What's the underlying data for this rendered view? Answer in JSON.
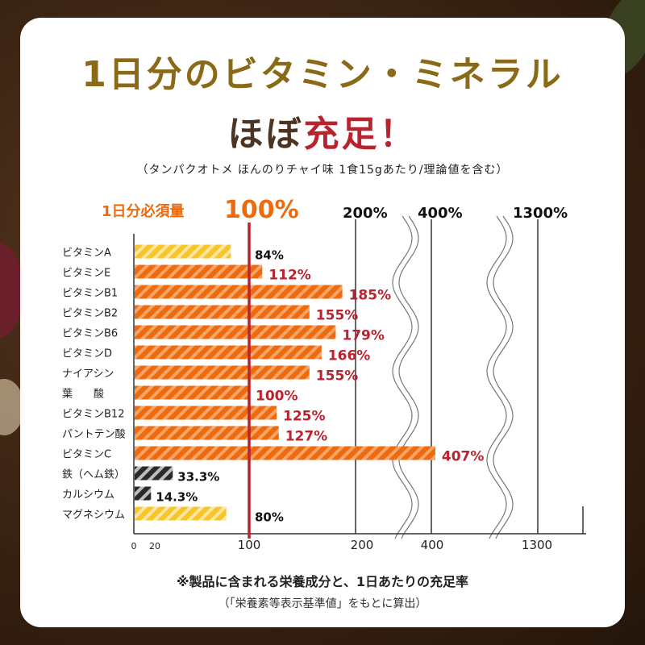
{
  "header": {
    "title_line1": "1日分のビタミン・ミネラル",
    "title_line2_prefix": "ほぼ",
    "title_line2_accent": "充足",
    "title_line2_suffix": "！",
    "subtitle": "（タンパクオトメ ほんのりチャイ味 1食15gあたり/理論値を含む）"
  },
  "footer": {
    "note": "※製品に含まれる栄養成分と、1日あたりの充足率",
    "source": "（「栄養素等表示基準値」をもとに算出）"
  },
  "colors": {
    "title_gold": "#8a6a18",
    "title_brown": "#4a3424",
    "accent_red": "#b8232e",
    "orange": "#ee6a0c",
    "yellow": "#f7c52a",
    "black": "#2a2a2a",
    "reference_line": "#b8232e"
  },
  "chart_data": {
    "type": "bar",
    "orientation": "horizontal",
    "reference_label": "1日分必須量",
    "reference_value": 100,
    "reference_value_label": "100%",
    "scale_break_labels": [
      "200%",
      "400%",
      "1300%"
    ],
    "x_tick_labels": [
      "0",
      "20",
      "100",
      "200",
      "400",
      "1300"
    ],
    "axis_breaks": true,
    "grid": true,
    "legend": "none",
    "categories": [
      "ビタミンA",
      "ビタミンE",
      "ビタミンB1",
      "ビタミンB2",
      "ビタミンB6",
      "ビタミンD",
      "ナイアシン",
      "葉　　酸",
      "ビタミンB12",
      "パントテン酸",
      "ビタミンC",
      "鉄（ヘム鉄）",
      "カルシウム",
      "マグネシウム"
    ],
    "values": [
      84,
      112,
      185,
      155,
      179,
      166,
      155,
      100,
      125,
      127,
      407,
      33.3,
      14.3,
      80
    ],
    "value_labels": [
      "84%",
      "112%",
      "185%",
      "155%",
      "179%",
      "166%",
      "155%",
      "100%",
      "125%",
      "127%",
      "407%",
      "33.3%",
      "14.3%",
      "80%"
    ],
    "bar_colors": [
      "yellow",
      "orange",
      "orange",
      "orange",
      "orange",
      "orange",
      "orange",
      "orange",
      "orange",
      "orange",
      "orange",
      "black",
      "black",
      "yellow"
    ],
    "label_colors": [
      "black",
      "red",
      "red",
      "red",
      "red",
      "red",
      "red",
      "red",
      "red",
      "red",
      "red",
      "black",
      "black",
      "black"
    ]
  }
}
